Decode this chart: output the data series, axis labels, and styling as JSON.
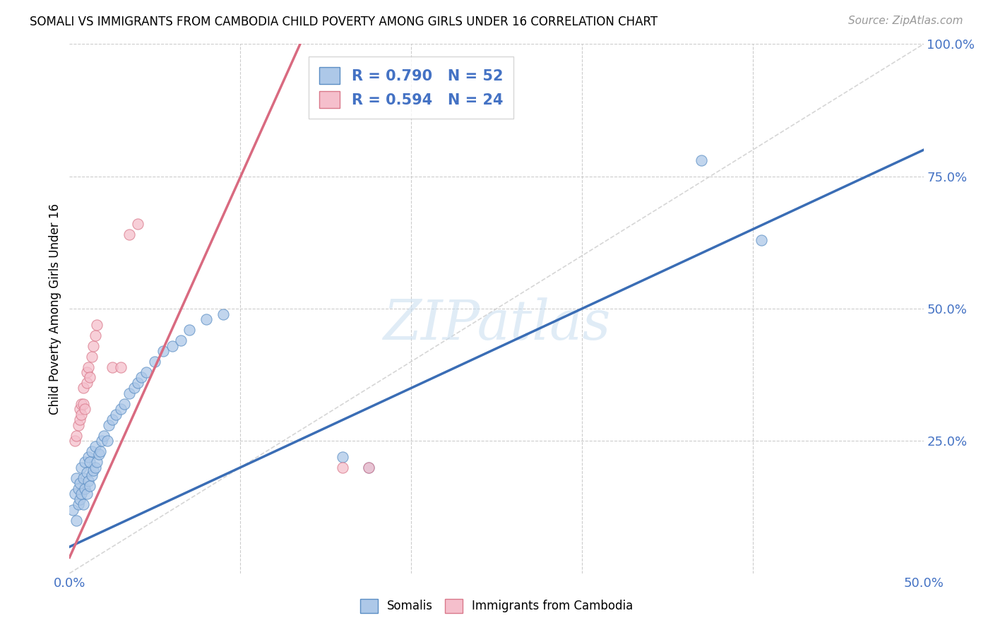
{
  "title": "SOMALI VS IMMIGRANTS FROM CAMBODIA CHILD POVERTY AMONG GIRLS UNDER 16 CORRELATION CHART",
  "source": "Source: ZipAtlas.com",
  "ylabel": "Child Poverty Among Girls Under 16",
  "xlim": [
    0.0,
    0.5
  ],
  "ylim": [
    0.0,
    1.0
  ],
  "xtick_vals": [
    0.0,
    0.1,
    0.2,
    0.3,
    0.4,
    0.5
  ],
  "xtick_labels": [
    "0.0%",
    "",
    "",
    "",
    "",
    "50.0%"
  ],
  "ytick_vals": [
    0.0,
    0.25,
    0.5,
    0.75,
    1.0
  ],
  "ytick_labels": [
    "",
    "25.0%",
    "50.0%",
    "75.0%",
    "100.0%"
  ],
  "watermark": "ZIPatlas",
  "somali_fill": "#adc8e8",
  "somali_edge": "#5b8ec4",
  "cambodia_fill": "#f5bfcc",
  "cambodia_edge": "#d9788a",
  "blue_line_color": "#3a6db5",
  "pink_line_color": "#d96a80",
  "diagonal_color": "#cccccc",
  "grid_color": "#cccccc",
  "R_somali": 0.79,
  "N_somali": 52,
  "R_cambodia": 0.594,
  "N_cambodia": 24,
  "blue_line_x0": 0.0,
  "blue_line_y0": 0.05,
  "blue_line_x1": 0.5,
  "blue_line_y1": 0.8,
  "pink_line_x0": 0.0,
  "pink_line_y0": 0.03,
  "pink_line_x1": 0.135,
  "pink_line_y1": 1.0,
  "somali_x": [
    0.002,
    0.003,
    0.004,
    0.004,
    0.005,
    0.005,
    0.006,
    0.006,
    0.007,
    0.007,
    0.008,
    0.008,
    0.009,
    0.009,
    0.01,
    0.01,
    0.011,
    0.011,
    0.012,
    0.012,
    0.013,
    0.013,
    0.014,
    0.015,
    0.015,
    0.016,
    0.017,
    0.018,
    0.019,
    0.02,
    0.022,
    0.023,
    0.025,
    0.027,
    0.03,
    0.032,
    0.035,
    0.038,
    0.04,
    0.042,
    0.045,
    0.05,
    0.055,
    0.06,
    0.065,
    0.07,
    0.08,
    0.09,
    0.16,
    0.175,
    0.37,
    0.405
  ],
  "somali_y": [
    0.12,
    0.15,
    0.1,
    0.18,
    0.13,
    0.16,
    0.14,
    0.17,
    0.15,
    0.2,
    0.13,
    0.18,
    0.16,
    0.21,
    0.15,
    0.19,
    0.175,
    0.22,
    0.165,
    0.21,
    0.185,
    0.23,
    0.195,
    0.2,
    0.24,
    0.21,
    0.225,
    0.23,
    0.25,
    0.26,
    0.25,
    0.28,
    0.29,
    0.3,
    0.31,
    0.32,
    0.34,
    0.35,
    0.36,
    0.37,
    0.38,
    0.4,
    0.42,
    0.43,
    0.44,
    0.46,
    0.48,
    0.49,
    0.22,
    0.2,
    0.78,
    0.63
  ],
  "cambodia_x": [
    0.003,
    0.004,
    0.005,
    0.006,
    0.006,
    0.007,
    0.007,
    0.008,
    0.008,
    0.009,
    0.01,
    0.01,
    0.011,
    0.012,
    0.013,
    0.014,
    0.015,
    0.016,
    0.025,
    0.03,
    0.035,
    0.04,
    0.16,
    0.175
  ],
  "cambodia_y": [
    0.25,
    0.26,
    0.28,
    0.29,
    0.31,
    0.3,
    0.32,
    0.32,
    0.35,
    0.31,
    0.36,
    0.38,
    0.39,
    0.37,
    0.41,
    0.43,
    0.45,
    0.47,
    0.39,
    0.39,
    0.64,
    0.66,
    0.2,
    0.2
  ]
}
